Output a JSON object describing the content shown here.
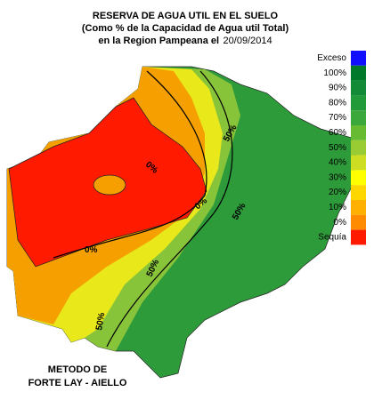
{
  "title": {
    "line1": "RESERVA DE AGUA UTIL EN EL SUELO",
    "line2": "(Como % de la Capacidad de  Agua util Total)",
    "line3": "en la Region Pampeana el",
    "date": "20/09/2014"
  },
  "legend": [
    {
      "label": "Exceso",
      "color": "#1010ff"
    },
    {
      "label": "100%",
      "color": "#007a2a"
    },
    {
      "label": "90%",
      "color": "#138a36"
    },
    {
      "label": "80%",
      "color": "#229a3a"
    },
    {
      "label": "70%",
      "color": "#3aa83a"
    },
    {
      "label": "60%",
      "color": "#66bb33"
    },
    {
      "label": "50%",
      "color": "#99cc33"
    },
    {
      "label": "40%",
      "color": "#ccdd22"
    },
    {
      "label": "30%",
      "color": "#ffff00"
    },
    {
      "label": "20%",
      "color": "#ffd700"
    },
    {
      "label": "10%",
      "color": "#ffb000"
    },
    {
      "label": "0%",
      "color": "#ff8c00"
    },
    {
      "label": "Sequía",
      "color": "#ff1a00"
    }
  ],
  "contour_labels": [
    "0%",
    "0%",
    "0%",
    "50%",
    "50%",
    "50%",
    "50%"
  ],
  "method": [
    "METODO DE",
    "FORTE LAY - AIELLO"
  ]
}
